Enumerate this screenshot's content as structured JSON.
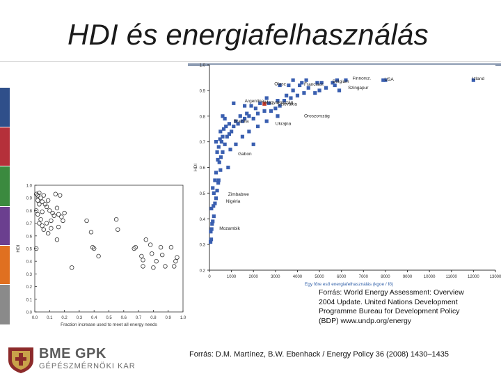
{
  "slide": {
    "title": "HDI és energiafelhasználás",
    "source_undp": "Forrás: World Energy Assessment: Overview 2004 Update. United Nations Development Programme Bureau for Development Policy (BDP) www.undp.org/energy",
    "source_paper": "Forrás: D.M. Martínez, B.W. Ebenhack / Energy Policy 36 (2008) 1430–1435",
    "logo_main": "BME GPK",
    "logo_sub": "GÉPÉSZMÉRNÖKI KAR",
    "sidebar_colors": [
      "#2f4f8a",
      "#b5303a",
      "#3b8a3f",
      "#6b3f8f",
      "#e07020",
      "#8a8a8a"
    ]
  },
  "chart_data": [
    {
      "type": "scatter",
      "title": "",
      "xlabel": "Egy főre eső energiafelhasználás    (kgoe / fő)",
      "ylabel": "HDI",
      "xlim": [
        0,
        13000
      ],
      "ylim": [
        0.2,
        1.0
      ],
      "xticks": [
        "0",
        "1000",
        "2000",
        "3000",
        "4000",
        "5000",
        "6000",
        "7000",
        "8000",
        "9000",
        "10000",
        "11000",
        "12000",
        "13000"
      ],
      "yticks": [
        "0.2",
        "0.3",
        "0.4",
        "0.5",
        "0.6",
        "0.7",
        "0.8",
        "0.9",
        "1.0"
      ],
      "labels": [
        {
          "name": "Olasz",
          "x": 2950,
          "y": 0.92
        },
        {
          "name": "Franciaor.",
          "x": 4300,
          "y": 0.918
        },
        {
          "name": "Belgium",
          "x": 5600,
          "y": 0.93
        },
        {
          "name": "Finnorsz.",
          "x": 6500,
          "y": 0.942
        },
        {
          "name": "USA",
          "x": 7950,
          "y": 0.938
        },
        {
          "name": "Izland",
          "x": 11950,
          "y": 0.94
        },
        {
          "name": "Szingapur",
          "x": 6300,
          "y": 0.905
        },
        {
          "name": "Argentina",
          "x": 1600,
          "y": 0.853
        },
        {
          "name": "Magyarország",
          "x": 2500,
          "y": 0.848
        },
        {
          "name": "Szlovákia",
          "x": 3100,
          "y": 0.842
        },
        {
          "name": "Oroszország",
          "x": 4300,
          "y": 0.795
        },
        {
          "name": "Brazília",
          "x": 1100,
          "y": 0.775
        },
        {
          "name": "Ukrajna",
          "x": 3000,
          "y": 0.766
        },
        {
          "name": "Gabon",
          "x": 1300,
          "y": 0.648
        },
        {
          "name": "Zimbabwe",
          "x": 850,
          "y": 0.49
        },
        {
          "name": "Nigéria",
          "x": 750,
          "y": 0.463
        },
        {
          "name": "Mozambik",
          "x": 450,
          "y": 0.357
        }
      ],
      "highlight": {
        "name": "Magyarország",
        "x": 2500,
        "y": 0.848,
        "color": "#c0392b"
      },
      "points": [
        [
          50,
          0.31
        ],
        [
          80,
          0.32
        ],
        [
          60,
          0.35
        ],
        [
          120,
          0.38
        ],
        [
          100,
          0.36
        ],
        [
          150,
          0.39
        ],
        [
          200,
          0.41
        ],
        [
          90,
          0.44
        ],
        [
          180,
          0.45
        ],
        [
          250,
          0.46
        ],
        [
          300,
          0.48
        ],
        [
          200,
          0.5
        ],
        [
          350,
          0.51
        ],
        [
          150,
          0.52
        ],
        [
          400,
          0.54
        ],
        [
          250,
          0.55
        ],
        [
          420,
          0.55
        ],
        [
          300,
          0.58
        ],
        [
          500,
          0.59
        ],
        [
          450,
          0.62
        ],
        [
          380,
          0.63
        ],
        [
          520,
          0.64
        ],
        [
          350,
          0.66
        ],
        [
          600,
          0.66
        ],
        [
          420,
          0.68
        ],
        [
          700,
          0.69
        ],
        [
          550,
          0.7
        ],
        [
          480,
          0.71
        ],
        [
          800,
          0.72
        ],
        [
          600,
          0.72
        ],
        [
          900,
          0.73
        ],
        [
          500,
          0.74
        ],
        [
          1000,
          0.74
        ],
        [
          650,
          0.75
        ],
        [
          1100,
          0.76
        ],
        [
          750,
          0.76
        ],
        [
          1300,
          0.77
        ],
        [
          900,
          0.77
        ],
        [
          1200,
          0.78
        ],
        [
          1500,
          0.78
        ],
        [
          700,
          0.79
        ],
        [
          1600,
          0.79
        ],
        [
          2000,
          0.79
        ],
        [
          1800,
          0.8
        ],
        [
          1400,
          0.8
        ],
        [
          2200,
          0.81
        ],
        [
          1700,
          0.81
        ],
        [
          2500,
          0.82
        ],
        [
          2800,
          0.82
        ],
        [
          3000,
          0.83
        ],
        [
          2100,
          0.83
        ],
        [
          3200,
          0.84
        ],
        [
          1900,
          0.84
        ],
        [
          2700,
          0.85
        ],
        [
          3100,
          0.86
        ],
        [
          2300,
          0.85
        ],
        [
          3400,
          0.86
        ],
        [
          3700,
          0.87
        ],
        [
          2600,
          0.87
        ],
        [
          4000,
          0.88
        ],
        [
          3500,
          0.88
        ],
        [
          1600,
          0.84
        ],
        [
          4300,
          0.89
        ],
        [
          4800,
          0.89
        ],
        [
          5000,
          0.9
        ],
        [
          3800,
          0.9
        ],
        [
          4500,
          0.91
        ],
        [
          5300,
          0.91
        ],
        [
          5700,
          0.92
        ],
        [
          3200,
          0.92
        ],
        [
          4100,
          0.92
        ],
        [
          5100,
          0.93
        ],
        [
          4900,
          0.93
        ],
        [
          5600,
          0.93
        ],
        [
          6200,
          0.94
        ],
        [
          3800,
          0.94
        ],
        [
          4400,
          0.94
        ],
        [
          5800,
          0.94
        ],
        [
          4200,
          0.93
        ],
        [
          3600,
          0.92
        ],
        [
          8000,
          0.94
        ],
        [
          7900,
          0.94
        ],
        [
          12000,
          0.94
        ],
        [
          5900,
          0.9
        ],
        [
          1100,
          0.85
        ],
        [
          600,
          0.8
        ],
        [
          300,
          0.7
        ],
        [
          1500,
          0.72
        ],
        [
          2200,
          0.76
        ],
        [
          2600,
          0.78
        ],
        [
          1800,
          0.74
        ],
        [
          2000,
          0.69
        ],
        [
          1200,
          0.69
        ],
        [
          850,
          0.6
        ],
        [
          950,
          0.67
        ],
        [
          3100,
          0.8
        ]
      ]
    },
    {
      "type": "scatter",
      "title": "",
      "xlabel": "Fraction increase used to meet all energy needs",
      "ylabel": "HDI",
      "xlim": [
        0.0,
        1.0
      ],
      "ylim": [
        0.0,
        1.0
      ],
      "xticks": [
        "0.0",
        "0.1",
        "0.2",
        "0.3",
        "0.4",
        "0.5",
        "0.6",
        "0.7",
        "0.8",
        "0.9",
        "1.0"
      ],
      "yticks": [
        "0.0",
        "0.1",
        "0.2",
        "0.3",
        "0.4",
        "0.5",
        "0.6",
        "0.7",
        "0.8",
        "0.9",
        "1.0"
      ],
      "points": [
        [
          0.01,
          0.93
        ],
        [
          0.02,
          0.92
        ],
        [
          0.03,
          0.94
        ],
        [
          0.02,
          0.88
        ],
        [
          0.04,
          0.9
        ],
        [
          0.05,
          0.87
        ],
        [
          0.03,
          0.85
        ],
        [
          0.06,
          0.92
        ],
        [
          0.01,
          0.8
        ],
        [
          0.07,
          0.85
        ],
        [
          0.08,
          0.83
        ],
        [
          0.02,
          0.77
        ],
        [
          0.05,
          0.79
        ],
        [
          0.09,
          0.88
        ],
        [
          0.04,
          0.73
        ],
        [
          0.1,
          0.8
        ],
        [
          0.12,
          0.78
        ],
        [
          0.03,
          0.7
        ],
        [
          0.06,
          0.65
        ],
        [
          0.08,
          0.7
        ],
        [
          0.11,
          0.72
        ],
        [
          0.13,
          0.76
        ],
        [
          0.15,
          0.82
        ],
        [
          0.16,
          0.77
        ],
        [
          0.14,
          0.93
        ],
        [
          0.17,
          0.92
        ],
        [
          0.18,
          0.75
        ],
        [
          0.2,
          0.78
        ],
        [
          0.11,
          0.66
        ],
        [
          0.19,
          0.72
        ],
        [
          0.09,
          0.62
        ],
        [
          0.16,
          0.67
        ],
        [
          0.01,
          0.5
        ],
        [
          0.15,
          0.57
        ],
        [
          0.35,
          0.72
        ],
        [
          0.38,
          0.63
        ],
        [
          0.39,
          0.51
        ],
        [
          0.4,
          0.5
        ],
        [
          0.43,
          0.44
        ],
        [
          0.55,
          0.73
        ],
        [
          0.56,
          0.65
        ],
        [
          0.67,
          0.5
        ],
        [
          0.68,
          0.51
        ],
        [
          0.72,
          0.44
        ],
        [
          0.73,
          0.41
        ],
        [
          0.75,
          0.57
        ],
        [
          0.73,
          0.36
        ],
        [
          0.78,
          0.53
        ],
        [
          0.79,
          0.46
        ],
        [
          0.82,
          0.4
        ],
        [
          0.85,
          0.51
        ],
        [
          0.86,
          0.45
        ],
        [
          0.94,
          0.36
        ],
        [
          0.95,
          0.4
        ],
        [
          0.92,
          0.51
        ],
        [
          0.88,
          0.36
        ],
        [
          0.8,
          0.35
        ],
        [
          0.96,
          0.43
        ],
        [
          0.05,
          0.68
        ],
        [
          0.25,
          0.35
        ]
      ]
    }
  ]
}
